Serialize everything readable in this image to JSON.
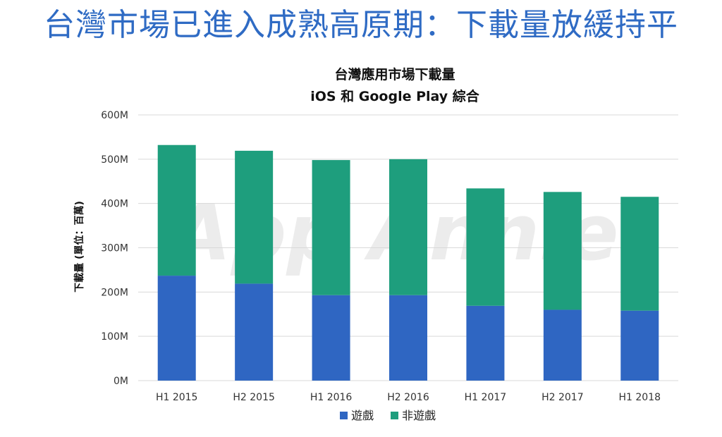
{
  "headline": "台灣市場已進入成熟高原期：下載量放緩持平",
  "watermark": "App Annie",
  "colors": {
    "series1": "#2f66c2",
    "series2": "#1e9e7d",
    "headline": "#2f6bc4",
    "grid": "#d9d9d9"
  },
  "chart_data": {
    "type": "bar",
    "stacked": true,
    "title": "台灣應用市場下載量",
    "subtitle": "iOS 和 Google Play 綜合",
    "xlabel": "",
    "ylabel": "下載量 (單位：百萬)",
    "ylim": [
      0,
      600
    ],
    "yticks": [
      0,
      100,
      200,
      300,
      400,
      500,
      600
    ],
    "ytick_labels": [
      "0M",
      "100M",
      "200M",
      "300M",
      "400M",
      "500M",
      "600M"
    ],
    "grid": true,
    "legend_position": "bottom-center",
    "categories": [
      "H1 2015",
      "H2 2015",
      "H1 2016",
      "H2 2016",
      "H1 2017",
      "H2 2017",
      "H1 2018"
    ],
    "series": [
      {
        "name": "遊戲",
        "values": [
          237,
          219,
          193,
          193,
          169,
          160,
          158
        ]
      },
      {
        "name": "非遊戲",
        "values": [
          295,
          300,
          305,
          307,
          265,
          266,
          257
        ]
      }
    ]
  }
}
